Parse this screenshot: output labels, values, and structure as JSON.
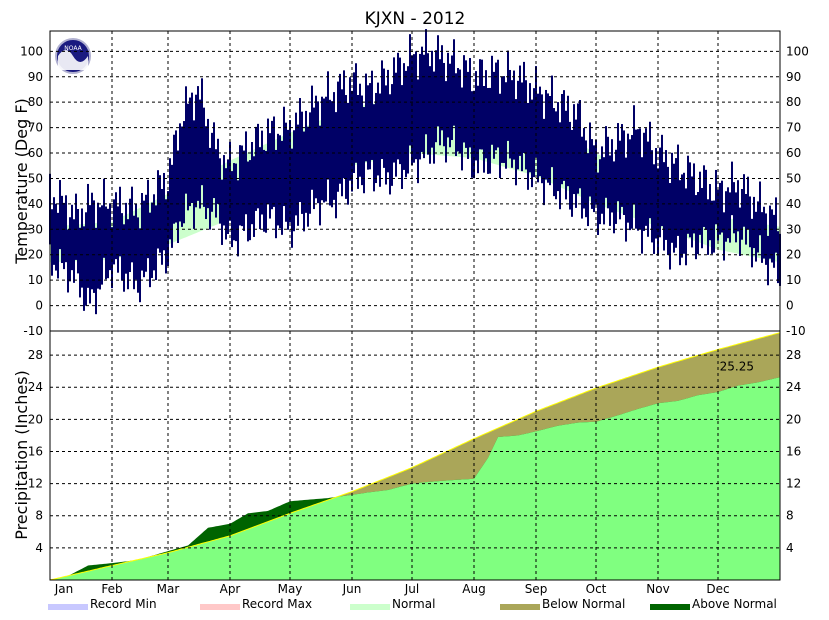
{
  "chart_data": {
    "title": "KJXN - 2012",
    "type": "area",
    "months": [
      "Jan",
      "Feb",
      "Mar",
      "Apr",
      "May",
      "Jun",
      "Jul",
      "Aug",
      "Sep",
      "Oct",
      "Nov",
      "Dec"
    ],
    "temperature": {
      "ylabel": "Temperature (Deg F)",
      "ylim": [
        -10,
        108
      ],
      "ticks": [
        -10,
        0,
        10,
        20,
        30,
        40,
        50,
        60,
        70,
        80,
        90,
        100
      ],
      "normal_band": {
        "day": [
          1,
          32,
          60,
          91,
          121,
          152,
          182,
          213,
          244,
          274,
          305,
          335,
          366
        ],
        "low": [
          17,
          18,
          24,
          34,
          45,
          55,
          60,
          58,
          51,
          40,
          31,
          22,
          17
        ],
        "high": [
          31,
          33,
          44,
          57,
          68,
          78,
          82,
          80,
          73,
          60,
          47,
          35,
          31
        ]
      },
      "observed": {
        "day": [
          1,
          15,
          20,
          32,
          45,
          60,
          67,
          75,
          85,
          91,
          100,
          110,
          121,
          135,
          145,
          152,
          160,
          170,
          182,
          190,
          197,
          205,
          213,
          225,
          235,
          244,
          255,
          265,
          274,
          285,
          295,
          305,
          315,
          325,
          335,
          345,
          355,
          366
        ],
        "low": [
          18,
          10,
          0,
          15,
          8,
          20,
          35,
          40,
          35,
          25,
          30,
          35,
          30,
          40,
          42,
          48,
          52,
          50,
          55,
          60,
          65,
          62,
          55,
          58,
          55,
          50,
          45,
          40,
          35,
          35,
          30,
          25,
          20,
          25,
          25,
          28,
          20,
          12
        ],
        "high": [
          45,
          35,
          40,
          40,
          38,
          50,
          75,
          85,
          60,
          55,
          62,
          68,
          70,
          80,
          85,
          88,
          85,
          90,
          98,
          100,
          98,
          95,
          90,
          92,
          90,
          85,
          80,
          75,
          60,
          65,
          70,
          60,
          55,
          50,
          45,
          48,
          40,
          33
        ]
      }
    },
    "precipitation": {
      "ylabel": "Precipitation (Inches)",
      "ylim": [
        0,
        31
      ],
      "ticks": [
        4,
        8,
        12,
        16,
        20,
        24,
        28
      ],
      "annotation": "25.25",
      "normal": {
        "day": [
          1,
          32,
          60,
          91,
          121,
          152,
          182,
          213,
          244,
          274,
          305,
          335,
          366
        ],
        "value": [
          0,
          1.8,
          3.4,
          5.5,
          8.3,
          11.0,
          14.0,
          17.6,
          21.0,
          23.9,
          26.5,
          28.7,
          30.8
        ]
      },
      "actual": {
        "day": [
          1,
          10,
          20,
          32,
          45,
          60,
          70,
          80,
          91,
          100,
          110,
          121,
          130,
          140,
          152,
          160,
          170,
          182,
          190,
          200,
          213,
          220,
          225,
          235,
          244,
          255,
          265,
          274,
          285,
          295,
          305,
          315,
          325,
          335,
          345,
          355,
          366
        ],
        "value": [
          0,
          0.5,
          1.8,
          2.1,
          2.5,
          3.6,
          4.3,
          6.5,
          7.0,
          8.3,
          8.6,
          9.8,
          10.0,
          10.2,
          10.6,
          10.9,
          11.2,
          12.0,
          12.2,
          12.4,
          12.6,
          15.2,
          17.8,
          18.0,
          18.5,
          19.2,
          19.6,
          19.7,
          20.5,
          21.3,
          22.0,
          22.3,
          23.0,
          23.4,
          24.2,
          24.6,
          25.25
        ]
      }
    },
    "legend": [
      {
        "label": "Record Min",
        "color": "#c8c8ff"
      },
      {
        "label": "Record Max",
        "color": "#ffc8c8"
      },
      {
        "label": "Normal",
        "color": "#ccffcc"
      },
      {
        "label": "Below Normal",
        "color": "#aaa659"
      },
      {
        "label": "Above Normal",
        "color": "#006400"
      }
    ],
    "colors": {
      "observed_temp": "#000066",
      "normal_temp": "#ccffcc",
      "precip_actual": "#80ff80",
      "below_normal": "#aaa659",
      "above_normal": "#006400",
      "normal_line": "#ffff00"
    }
  }
}
